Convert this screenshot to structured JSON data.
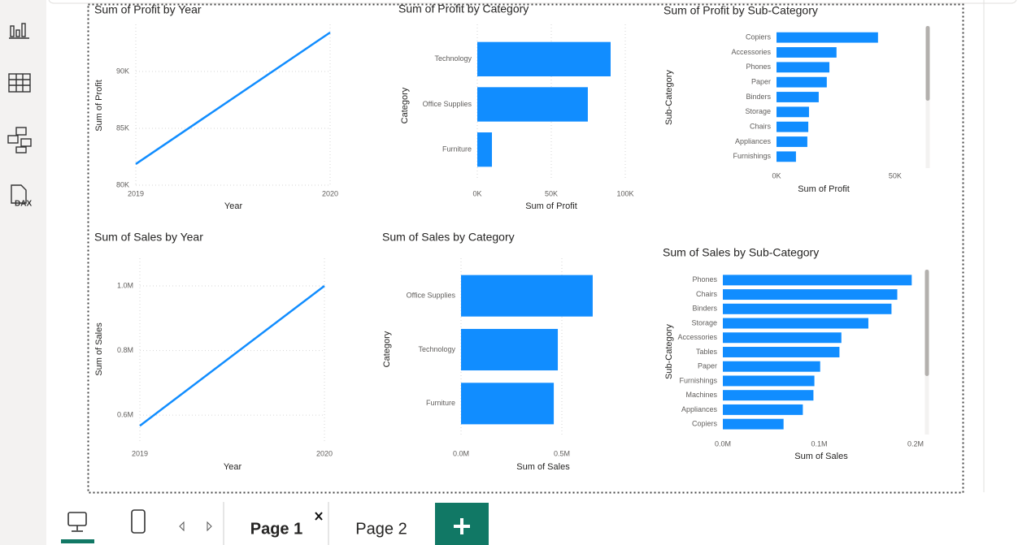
{
  "chart_data": [
    {
      "type": "line",
      "title": "Sum of Profit by Year",
      "x_label": "Year",
      "y_label": "Sum of Profit",
      "x": [
        2019,
        2020
      ],
      "values": [
        81860,
        93430
      ],
      "color": "#118dff",
      "xlim": [
        2019,
        2020
      ],
      "xticks": [
        2019,
        2020
      ],
      "ylim": [
        80000,
        94000
      ],
      "yticks": [
        {
          "value": 80000,
          "label": "80K"
        },
        {
          "value": 85000,
          "label": "85K"
        },
        {
          "value": 90000,
          "label": "90K"
        }
      ],
      "grid": true
    },
    {
      "type": "bar",
      "orientation": "horizontal",
      "title": "Sum of Profit by Category",
      "x_label": "Sum of Profit",
      "y_label": "Category",
      "categories": [
        "Technology",
        "Office Supplies",
        "Furniture"
      ],
      "values": [
        90100,
        74700,
        9900
      ],
      "color": "#118dff",
      "xlim": [
        0,
        100000
      ],
      "xticks": [
        {
          "value": 0,
          "label": "0K"
        },
        {
          "value": 50000,
          "label": "50K"
        },
        {
          "value": 100000,
          "label": "100K"
        }
      ],
      "grid": true
    },
    {
      "type": "bar",
      "orientation": "horizontal",
      "title": "Sum of Profit by Sub-Category",
      "x_label": "Sum of Profit",
      "y_label": "Sub-Category",
      "categories": [
        "Copiers",
        "Accessories",
        "Phones",
        "Paper",
        "Binders",
        "Storage",
        "Chairs",
        "Appliances",
        "Furnishings"
      ],
      "values": [
        42800,
        25300,
        22300,
        21200,
        17800,
        13700,
        13400,
        13000,
        8200
      ],
      "color": "#118dff",
      "xlim": [
        0,
        60000
      ],
      "xticks": [
        {
          "value": 0,
          "label": "0K"
        },
        {
          "value": 50000,
          "label": "50K"
        }
      ],
      "grid": false,
      "scrollbar": true
    },
    {
      "type": "line",
      "title": "Sum of Sales by Year",
      "x_label": "Year",
      "y_label": "Sum of Sales",
      "x": [
        2019,
        2020
      ],
      "values": [
        567000,
        1000000
      ],
      "color": "#118dff",
      "xlim": [
        2019,
        2020
      ],
      "xticks": [
        2019,
        2020
      ],
      "ylim": [
        520000,
        1060000
      ],
      "yticks": [
        {
          "value": 600000,
          "label": "0.6M"
        },
        {
          "value": 800000,
          "label": "0.8M"
        },
        {
          "value": 1000000,
          "label": "1.0M"
        }
      ],
      "grid": true
    },
    {
      "type": "bar",
      "orientation": "horizontal",
      "title": "Sum of Sales by Category",
      "x_label": "Sum of Sales",
      "y_label": "Category",
      "categories": [
        "Office Supplies",
        "Technology",
        "Furniture"
      ],
      "values": [
        653000,
        480000,
        460000
      ],
      "color": "#118dff",
      "xlim": [
        0,
        700000
      ],
      "xticks": [
        {
          "value": 0,
          "label": "0.0M"
        },
        {
          "value": 500000,
          "label": "0.5M"
        }
      ],
      "grid": true
    },
    {
      "type": "bar",
      "orientation": "horizontal",
      "title": "Sum of Sales by Sub-Category",
      "x_label": "Sum of Sales",
      "y_label": "Sub-Category",
      "categories": [
        "Phones",
        "Chairs",
        "Binders",
        "Storage",
        "Accessories",
        "Tables",
        "Paper",
        "Furnishings",
        "Machines",
        "Appliances",
        "Copiers"
      ],
      "values": [
        196000,
        181000,
        175000,
        151000,
        123000,
        121000,
        101000,
        95000,
        94000,
        83000,
        63000
      ],
      "color": "#118dff",
      "xlim": [
        0,
        210000
      ],
      "xticks": [
        {
          "value": 0,
          "label": "0.0M"
        },
        {
          "value": 100000,
          "label": "0.1M"
        },
        {
          "value": 200000,
          "label": "0.2M"
        }
      ],
      "grid": false,
      "scrollbar": true
    }
  ],
  "sidebar": {
    "dax_icon": "DAX"
  },
  "tabs": [
    "Page 1",
    "Page 2"
  ]
}
